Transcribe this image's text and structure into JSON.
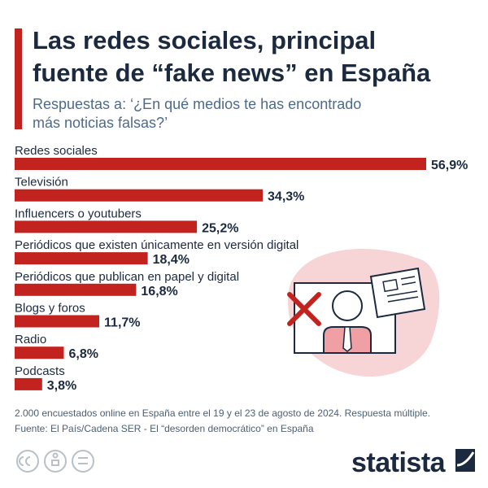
{
  "chart_data": {
    "type": "bar",
    "orientation": "horizontal",
    "title": [
      "Las redes sociales, principal",
      "fuente de “fake news” en España"
    ],
    "subtitle": [
      "Respuestas a: ‘¿En qué medios te has encontrado",
      "más noticias falsas?’"
    ],
    "categories": [
      "Redes sociales",
      "Televisión",
      "Influencers o youtubers",
      "Periódicos que existen únicamente en versión digital",
      "Periódicos que publican en papel y digital",
      "Blogs y foros",
      "Radio",
      "Podcasts"
    ],
    "values": [
      56.9,
      34.3,
      25.2,
      18.4,
      16.8,
      11.7,
      6.8,
      3.8
    ],
    "value_labels": [
      "56,9%",
      "34,3%",
      "25,2%",
      "18,4%",
      "16,8%",
      "11,7%",
      "6,8%",
      "3,8%"
    ],
    "color": "#c3231f",
    "footnote": "2.000 encuestados online en España entre el 19 y el 23 de agosto de 2024. Respuesta múltiple.",
    "source": "Fuente: El País/Cadena SER - El “desorden democrático” en España",
    "brand": "statista"
  }
}
